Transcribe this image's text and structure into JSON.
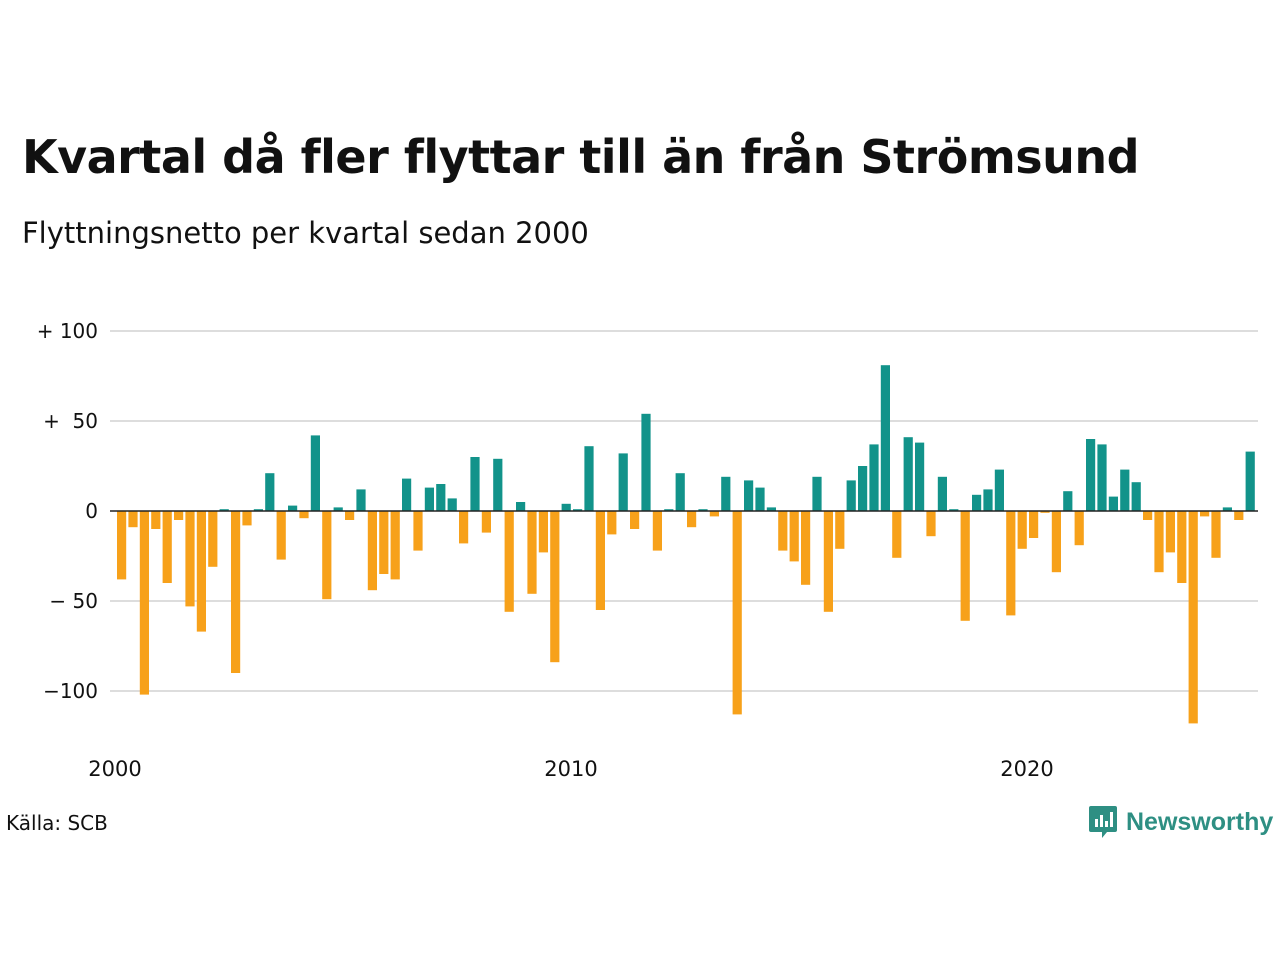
{
  "title": "Kvartal då fler flyttar till än från Strömsund",
  "subtitle": "Flyttningsnetto per kvartal sedan 2000",
  "source": "Källa: SCB",
  "brand": "Newsworthy",
  "colors": {
    "positive": "#12938a",
    "negative": "#f7a11a",
    "grid": "#dddddd",
    "brand": "#2e8f83"
  },
  "chart_data": {
    "type": "bar",
    "title": "Kvartal då fler flyttar till än från Strömsund",
    "subtitle": "Flyttningsnetto per kvartal sedan 2000",
    "x_start": "2000 Q1",
    "frequency": "quarterly",
    "ylim": [
      -125,
      105
    ],
    "yticks": [
      100,
      50,
      0,
      -50,
      -100
    ],
    "ytick_labels": [
      "+ 100",
      "+  50",
      "0",
      "− 50",
      "−100"
    ],
    "xtick_labels": [
      "2000",
      "2010",
      "2020"
    ],
    "grid": true,
    "values": [
      -38,
      -9,
      -102,
      -10,
      -40,
      -5,
      -53,
      -67,
      -31,
      1,
      -90,
      -8,
      1,
      21,
      -27,
      3,
      -4,
      42,
      -49,
      2,
      -5,
      12,
      -44,
      -35,
      -38,
      18,
      -22,
      13,
      15,
      7,
      -18,
      30,
      -12,
      29,
      -56,
      5,
      -46,
      -23,
      -84,
      4,
      1,
      36,
      -55,
      -13,
      32,
      -10,
      54,
      -22,
      1,
      21,
      -9,
      1,
      -3,
      19,
      -113,
      17,
      13,
      2,
      -22,
      -28,
      -41,
      19,
      -56,
      -21,
      17,
      25,
      37,
      81,
      -26,
      41,
      38,
      -14,
      19,
      1,
      -61,
      9,
      12,
      23,
      -58,
      -21,
      -15,
      -1,
      -34,
      11,
      -19,
      40,
      37,
      8,
      23,
      16,
      -5,
      -34,
      -23,
      -40,
      -118,
      -3,
      -26,
      2,
      -5,
      33
    ]
  }
}
